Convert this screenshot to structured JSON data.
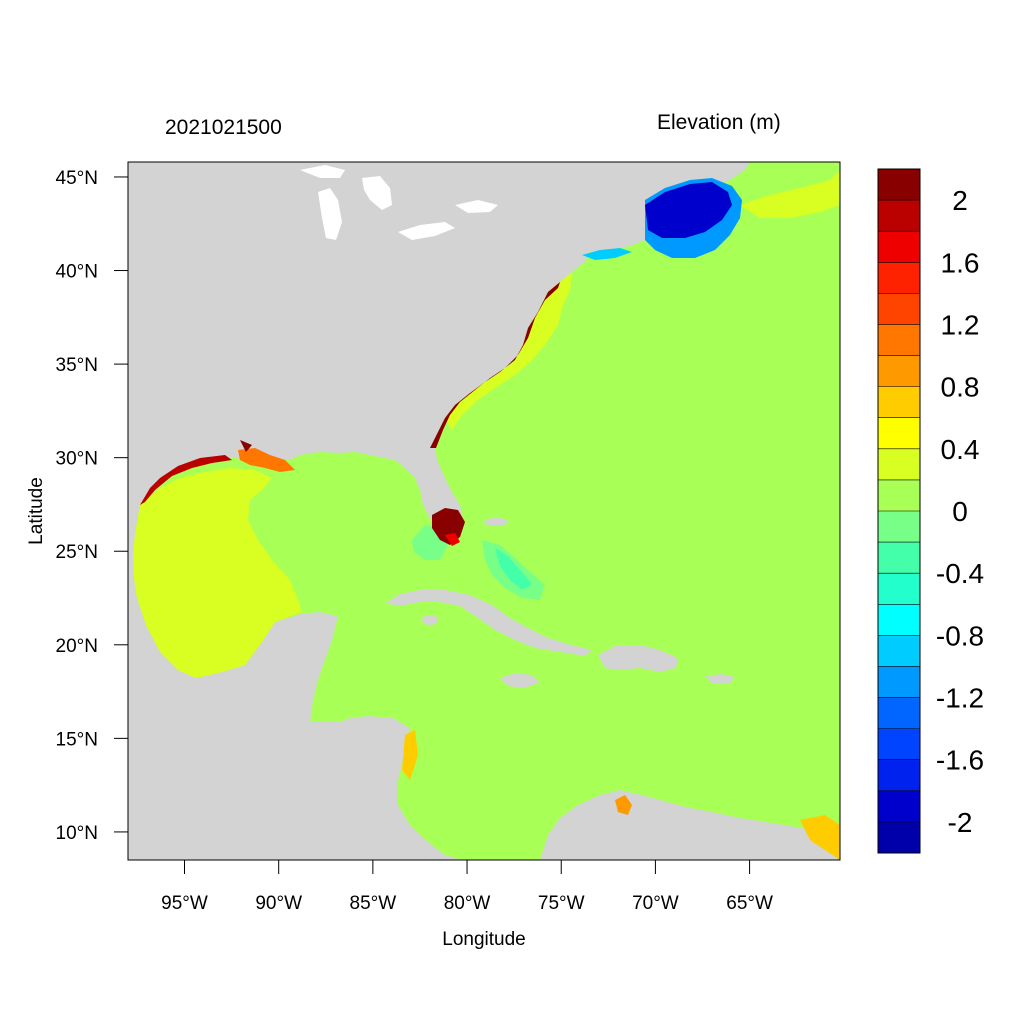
{
  "header": {
    "timestamp": "2021021500",
    "colorbar_title": "Elevation (m)"
  },
  "axes": {
    "xlabel": "Longitude",
    "ylabel": "Latitude",
    "x_ticks": [
      {
        "value": -95,
        "label": "95°W"
      },
      {
        "value": -90,
        "label": "90°W"
      },
      {
        "value": -85,
        "label": "85°W"
      },
      {
        "value": -80,
        "label": "80°W"
      },
      {
        "value": -75,
        "label": "75°W"
      },
      {
        "value": -70,
        "label": "70°W"
      },
      {
        "value": -65,
        "label": "65°W"
      }
    ],
    "y_ticks": [
      {
        "value": 45,
        "label": "45°N"
      },
      {
        "value": 40,
        "label": "40°N"
      },
      {
        "value": 35,
        "label": "35°N"
      },
      {
        "value": 30,
        "label": "30°N"
      },
      {
        "value": 25,
        "label": "25°N"
      },
      {
        "value": 20,
        "label": "20°N"
      },
      {
        "value": 15,
        "label": "15°N"
      },
      {
        "value": 10,
        "label": "10°N"
      }
    ],
    "lon_range": [
      -98,
      -60.2
    ],
    "lat_range": [
      8.5,
      45.8
    ]
  },
  "colorbar": {
    "colors_top_to_bottom": [
      "#880000",
      "#bb0000",
      "#ee0000",
      "#ff2200",
      "#ff4400",
      "#ff7700",
      "#ff9900",
      "#ffcc00",
      "#ffff00",
      "#d9ff22",
      "#a8ff55",
      "#77ff88",
      "#44ffaa",
      "#22ffcc",
      "#00ffff",
      "#00ccff",
      "#0099ff",
      "#0066ff",
      "#0044ff",
      "#0022ee",
      "#0000cc",
      "#0000aa"
    ],
    "labels": [
      "2",
      "1.6",
      "1.2",
      "0.8",
      "0.4",
      "0",
      "-0.4",
      "-0.8",
      "-1.2",
      "-1.6",
      "-2"
    ],
    "range": [
      -2.2,
      2.2
    ]
  },
  "map": {
    "land_color": "#d3d3d3",
    "ocean_color": "#a8ff55",
    "lake_color": "#ffffff"
  }
}
